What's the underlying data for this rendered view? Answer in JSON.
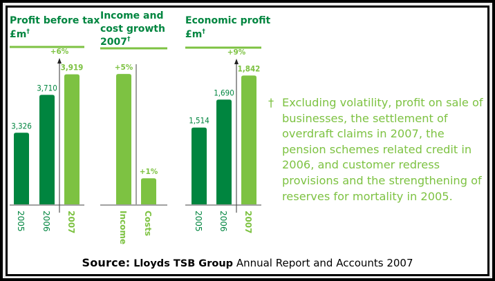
{
  "colors": {
    "dark_green": "#00853f",
    "light_green": "#7dc242",
    "axis_gray": "#a0a0a0",
    "arrow_gray": "#555555"
  },
  "chart_data": [
    {
      "type": "bar",
      "title": "Profit before tax",
      "subtitle": "£m",
      "footnote_marker": "†",
      "categories": [
        "2005",
        "2006",
        "2007"
      ],
      "values": [
        3326,
        3710,
        3919
      ],
      "value_labels": [
        "3,326",
        "3,710",
        "3,919"
      ],
      "highlight_index": 2,
      "growth_annotation": "+6%",
      "ylim": [
        2600,
        4000
      ]
    },
    {
      "type": "bar",
      "title_lines": [
        "Income and",
        "cost growth",
        "2007"
      ],
      "footnote_marker": "†",
      "categories": [
        "Income",
        "Costs"
      ],
      "values": [
        5,
        1
      ],
      "value_labels": [
        "+5%",
        "+1%"
      ],
      "unit": "%",
      "ylim": [
        0,
        5.4
      ]
    },
    {
      "type": "bar",
      "title": "Economic profit",
      "subtitle": "£m",
      "footnote_marker": "†",
      "categories": [
        "2005",
        "2006",
        "2007"
      ],
      "values": [
        1514,
        1690,
        1842
      ],
      "value_labels": [
        "1,514",
        "1,690",
        "1,842"
      ],
      "highlight_index": 2,
      "growth_annotation": "+9%",
      "ylim": [
        1030,
        1900
      ]
    }
  ],
  "footnote": {
    "marker": "†",
    "lines": [
      "Excluding volatility, profit on sale of",
      "businesses, the settlement of",
      "overdraft claims in 2007, the",
      "pension schemes related credit in",
      "2006, and customer redress",
      "provisions and the strengthening of",
      "reserves for mortality in 2005."
    ]
  },
  "source": {
    "lead": "Source:",
    "org": "Lloyds TSB Group",
    "rest": "Annual Report and Accounts 2007"
  }
}
